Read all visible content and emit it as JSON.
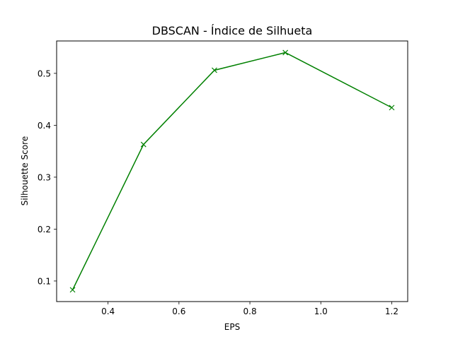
{
  "chart_data": {
    "type": "line",
    "title": "DBSCAN - Índice de Silhueta",
    "xlabel": "EPS",
    "ylabel": "Silhouette Score",
    "xlim": [
      0.255,
      1.245
    ],
    "ylim": [
      0.0604,
      0.5624
    ],
    "xticks": [
      0.4,
      0.6,
      0.8,
      1.0,
      1.2
    ],
    "xtick_labels": [
      "0.4",
      "0.6",
      "0.8",
      "1.0",
      "1.2"
    ],
    "yticks": [
      0.1,
      0.2,
      0.3,
      0.4,
      0.5
    ],
    "ytick_labels": [
      "0.1",
      "0.2",
      "0.3",
      "0.4",
      "0.5"
    ],
    "grid": false,
    "series": [
      {
        "color": "#008000",
        "marker": "x",
        "x": [
          0.3,
          0.5,
          0.7,
          0.9,
          1.2
        ],
        "y": [
          0.083,
          0.363,
          0.506,
          0.54,
          0.434
        ]
      }
    ]
  }
}
